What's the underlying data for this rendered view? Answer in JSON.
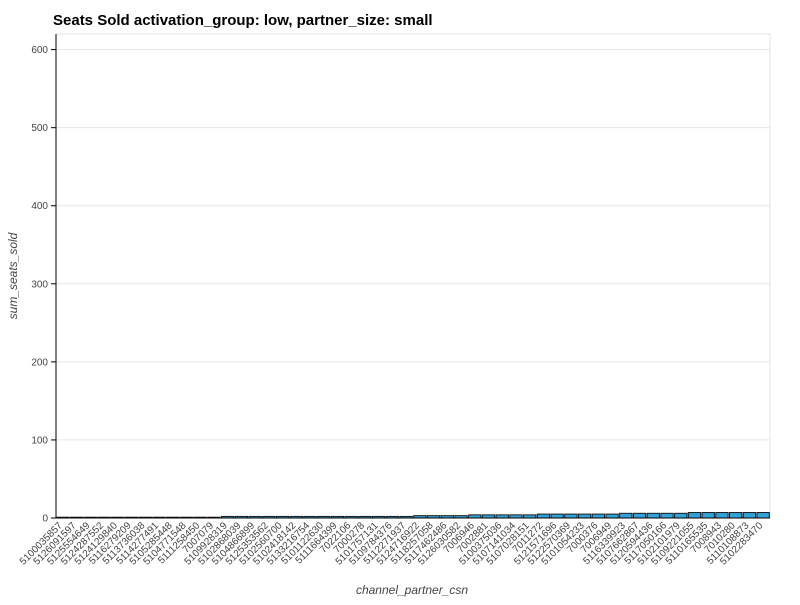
{
  "chart_data": {
    "type": "bar",
    "title": "Seats Sold  activation_group: low, partner_size: small",
    "xlabel": "channel_partner_csn",
    "ylabel": "sum_seats_sold",
    "ylim": [
      0,
      620
    ],
    "yticks": [
      0,
      100,
      200,
      300,
      400,
      500,
      600
    ],
    "grid": true,
    "bar_color": "#30a2da",
    "categories": [
      "5100035857",
      "5126091597",
      "5125554649",
      "5124287552",
      "5124129840",
      "5116279209",
      "5113736038",
      "5114277491",
      "5105285448",
      "5104771548",
      "5111258450",
      "7007079",
      "5109928319",
      "5102868039",
      "5104866899",
      "5125353562",
      "5102560700",
      "5102418142",
      "5133216754",
      "5101122630",
      "5111664399",
      "7022106",
      "7000278",
      "5101757131",
      "5109784376",
      "5112271937",
      "5124716922",
      "5118257058",
      "5117462486",
      "5126030582",
      "7006946",
      "7002881",
      "5100375036",
      "5107141034",
      "5107028151",
      "7011272",
      "5121571696",
      "5122570369",
      "5101054233",
      "7000376",
      "7006949",
      "5116339923",
      "5107662867",
      "5120594436",
      "5117050166",
      "5102101979",
      "5109221055",
      "5110165535",
      "7008943",
      "7010280",
      "5110108873",
      "5102283470"
    ],
    "values": [
      1,
      1,
      1,
      1,
      1,
      1,
      1,
      1,
      1,
      1,
      1,
      1,
      2,
      2,
      2,
      2,
      2,
      2,
      2,
      2,
      2,
      2,
      2,
      2,
      2,
      2,
      3,
      3,
      3,
      3,
      4,
      4,
      4,
      4,
      4,
      5,
      5,
      5,
      5,
      5,
      5,
      6,
      6,
      6,
      6,
      6,
      7,
      7,
      7,
      7,
      7,
      7
    ]
  }
}
